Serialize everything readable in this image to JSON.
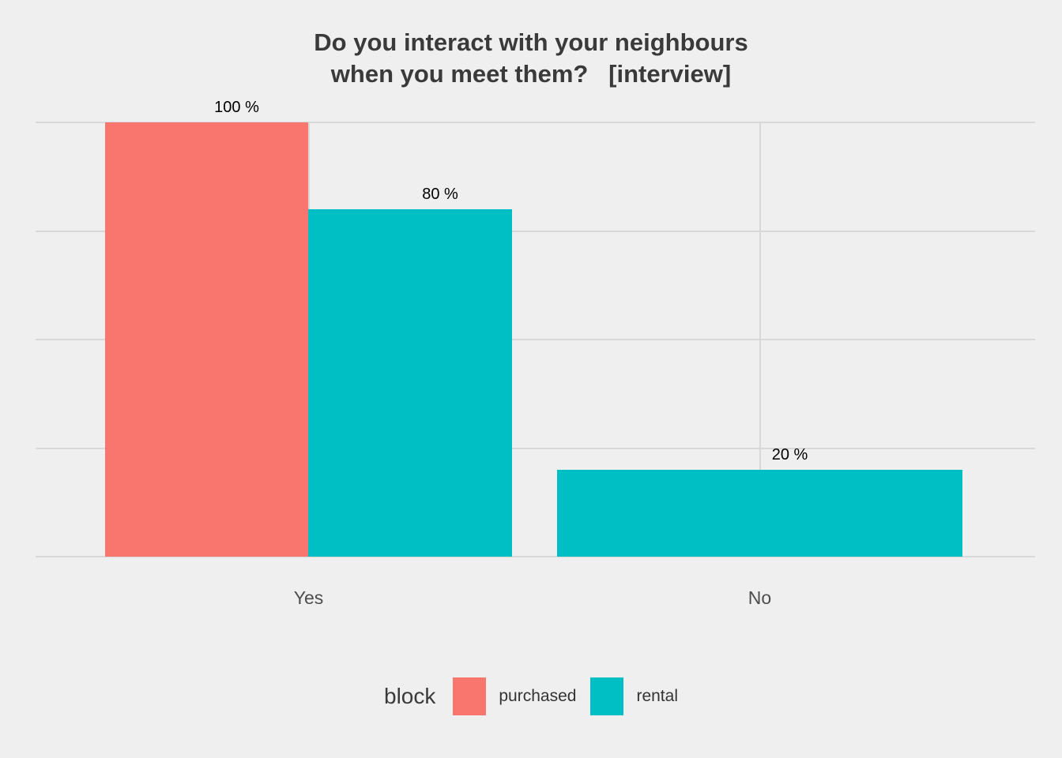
{
  "title_line1": "Do you interact with your neighbours",
  "title_line2": "when you meet them?   [interview]",
  "chart_data": {
    "type": "bar",
    "title": "Do you interact with your neighbours when you meet them? [interview]",
    "categories": [
      "Yes",
      "No"
    ],
    "series": [
      {
        "name": "purchased",
        "color": "#F8766D",
        "values": [
          100,
          null
        ]
      },
      {
        "name": "rental",
        "color": "#00BFC4",
        "values": [
          80,
          20
        ]
      }
    ],
    "value_labels": [
      "100 %",
      "80 %",
      "20 %"
    ],
    "value_suffix": " %",
    "ylim": [
      0,
      100
    ],
    "y_gridlines": [
      0,
      25,
      50,
      75,
      100
    ],
    "grid": true,
    "legend_position": "bottom",
    "legend_title": "block",
    "xlabel": "",
    "ylabel": ""
  },
  "legend": {
    "title": "block",
    "items": [
      {
        "label": "purchased",
        "color": "#F8766D"
      },
      {
        "label": "rental",
        "color": "#00BFC4"
      }
    ]
  },
  "colors": {
    "background": "#EFEFEF",
    "gridline": "#D8D8D8",
    "title_text": "#3a3a3a",
    "tick_text": "#4d4d4d"
  }
}
